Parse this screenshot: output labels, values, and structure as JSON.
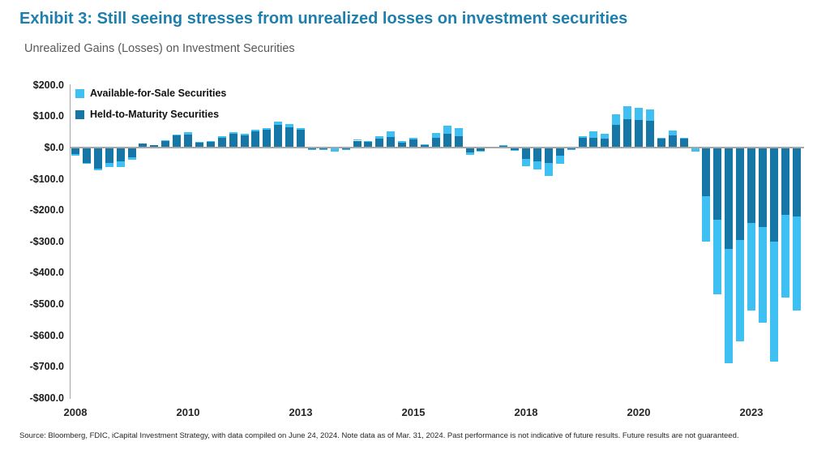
{
  "header": {
    "title": "Exhibit 3: Still seeing stresses from unrealized losses on investment securities",
    "subtitle": "Unrealized Gains (Losses) on Investment Securities"
  },
  "colors": {
    "title_accent": "#1E7FAC",
    "afs_blue": "#3EC0F3",
    "htm_blue": "#1676A6",
    "axis_gray": "#A6A6A6"
  },
  "legend": {
    "items": [
      {
        "label": "Available-for-Sale Securities",
        "color": "#3EC0F3"
      },
      {
        "label": "Held-to-Maturity Securities",
        "color": "#1676A6"
      }
    ]
  },
  "footer": {
    "text": "Source: Bloomberg, FDIC, iCapital Investment Strategy, with data compiled on June 24, 2024. Note data as of Mar. 31, 2024. Past performance is not indicative of future results. Future results are not guaranteed."
  },
  "chart_data": {
    "type": "bar",
    "stacked": true,
    "title": "Unrealized Gains (Losses) on Investment Securities",
    "xlabel": "",
    "ylabel": "",
    "ylim": [
      -800,
      200
    ],
    "ytick_step": 100,
    "grid": false,
    "legend_position": "top-left-inside",
    "units": "USD billions",
    "ytick_labels": [
      "$200.0",
      "$100.0",
      "$0.0",
      "-$100.0",
      "-$200.0",
      "-$300.0",
      "-$400.0",
      "-$500.0",
      "-$600.0",
      "-$700.0",
      "-$800.0"
    ],
    "ytick_values": [
      200,
      100,
      0,
      -100,
      -200,
      -300,
      -400,
      -500,
      -600,
      -700,
      -800
    ],
    "x_axis_labels": [
      {
        "label": "2008",
        "index": 0
      },
      {
        "label": "2010",
        "index": 10
      },
      {
        "label": "2013",
        "index": 20
      },
      {
        "label": "2015",
        "index": 30
      },
      {
        "label": "2018",
        "index": 40
      },
      {
        "label": "2020",
        "index": 50
      },
      {
        "label": "2023",
        "index": 60
      }
    ],
    "categories": [
      "2008Q1",
      "2008Q2",
      "2008Q3",
      "2008Q4",
      "2009Q1",
      "2009Q2",
      "2009Q3",
      "2009Q4",
      "2010Q1",
      "2010Q2",
      "2010Q3",
      "2010Q4",
      "2011Q1",
      "2011Q2",
      "2011Q3",
      "2011Q4",
      "2012Q1",
      "2012Q2",
      "2012Q3",
      "2012Q4",
      "2013Q1",
      "2013Q2",
      "2013Q3",
      "2013Q4",
      "2014Q1",
      "2014Q2",
      "2014Q3",
      "2014Q4",
      "2015Q1",
      "2015Q2",
      "2015Q3",
      "2015Q4",
      "2016Q1",
      "2016Q2",
      "2016Q3",
      "2016Q4",
      "2017Q1",
      "2017Q2",
      "2017Q3",
      "2017Q4",
      "2018Q1",
      "2018Q2",
      "2018Q3",
      "2018Q4",
      "2019Q1",
      "2019Q2",
      "2019Q3",
      "2019Q4",
      "2020Q1",
      "2020Q2",
      "2020Q3",
      "2020Q4",
      "2021Q1",
      "2021Q2",
      "2021Q3",
      "2021Q4",
      "2022Q1",
      "2022Q2",
      "2022Q3",
      "2022Q4",
      "2023Q1",
      "2023Q2",
      "2023Q3",
      "2023Q4",
      "2024Q1"
    ],
    "series": [
      {
        "name": "Held-to-Maturity Securities",
        "color": "#1676A6",
        "values": [
          -22,
          -48,
          -68,
          -48,
          -45,
          -32,
          14,
          9,
          22,
          38,
          42,
          18,
          20,
          32,
          45,
          40,
          52,
          56,
          72,
          66,
          57,
          -6,
          -4,
          -3,
          -4,
          22,
          17,
          28,
          33,
          16,
          25,
          9,
          32,
          43,
          36,
          -15,
          -10,
          1,
          7,
          -8,
          -35,
          -45,
          -49,
          -27,
          -5,
          30,
          30,
          28,
          72,
          91,
          89,
          85,
          28,
          38,
          28,
          -1,
          -155,
          -230,
          -325,
          -295,
          -240,
          -255,
          -300,
          -215,
          -220
        ]
      },
      {
        "name": "Available-for-Sale Securities",
        "color": "#3EC0F3",
        "values": [
          -3,
          -4,
          -5,
          -15,
          -17,
          -7,
          0,
          0,
          1,
          3,
          6,
          1,
          1,
          3,
          3,
          3,
          5,
          5,
          10,
          8,
          6,
          -1,
          -2,
          -10,
          -1,
          5,
          3,
          7,
          19,
          4,
          6,
          1,
          15,
          26,
          26,
          -9,
          -3,
          0,
          1,
          -3,
          -24,
          -26,
          -41,
          -25,
          -1,
          5,
          22,
          15,
          35,
          42,
          39,
          36,
          2,
          17,
          3,
          -13,
          -145,
          -240,
          -365,
          -325,
          -280,
          -305,
          -385,
          -265,
          -300
        ]
      }
    ]
  }
}
